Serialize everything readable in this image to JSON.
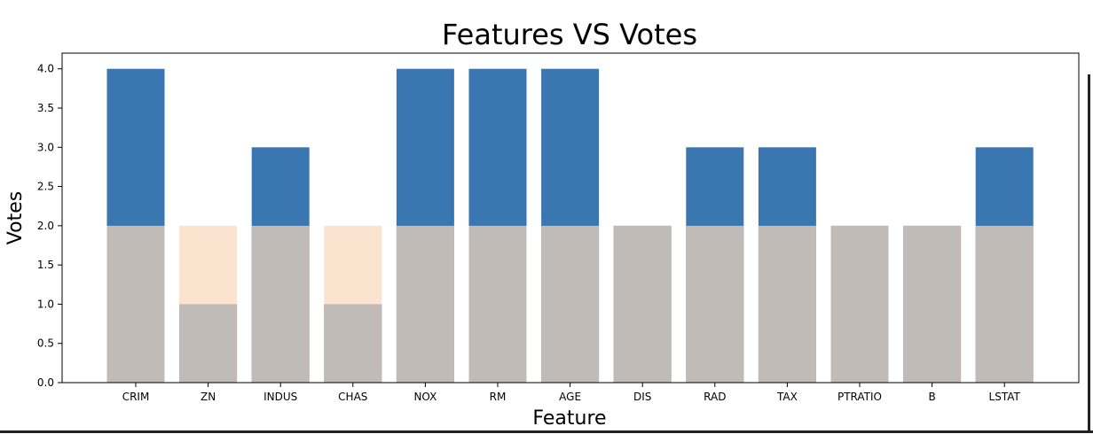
{
  "chart_data": {
    "type": "bar",
    "title": "Features VS Votes",
    "xlabel": "Feature",
    "ylabel": "Votes",
    "categories": [
      "CRIM",
      "ZN",
      "INDUS",
      "CHAS",
      "NOX",
      "RM",
      "AGE",
      "DIS",
      "RAD",
      "TAX",
      "PTRATIO",
      "B",
      "LSTAT"
    ],
    "series": [
      {
        "values": [
          4,
          1,
          3,
          1,
          4,
          4,
          4,
          2,
          3,
          3,
          2,
          2,
          3
        ],
        "color": "#3a76af"
      },
      {
        "values": [
          2,
          2,
          2,
          2,
          2,
          2,
          2,
          2,
          2,
          2,
          2,
          2,
          2
        ],
        "color": "#f9d9bb",
        "alpha": 0.7
      }
    ],
    "ylim": [
      0,
      4.2
    ],
    "yticks": [
      "0.0",
      "0.5",
      "1.0",
      "1.5",
      "2.0",
      "2.5",
      "3.0",
      "3.5",
      "4.0"
    ],
    "grid": false,
    "legend": "none"
  }
}
